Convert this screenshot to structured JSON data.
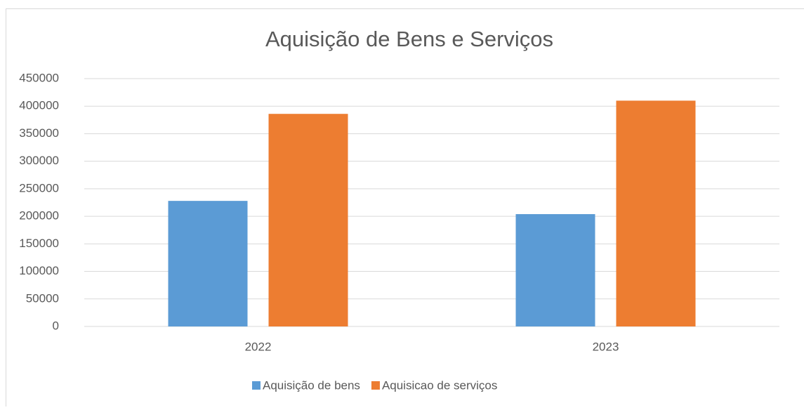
{
  "chart_data": {
    "type": "bar",
    "title": "Aquisição de Bens e Serviços",
    "categories": [
      "2022",
      "2023"
    ],
    "series": [
      {
        "name": "Aquisição de bens",
        "color": "#5b9bd5",
        "values": [
          228000,
          204000
        ]
      },
      {
        "name": "Aquisicao de serviços",
        "color": "#ed7d31",
        "values": [
          386000,
          410000
        ]
      }
    ],
    "ylim": [
      0,
      450000
    ],
    "yticks": [
      0,
      50000,
      100000,
      150000,
      200000,
      250000,
      300000,
      350000,
      400000,
      450000
    ],
    "grid": true,
    "legend": "bottom"
  }
}
